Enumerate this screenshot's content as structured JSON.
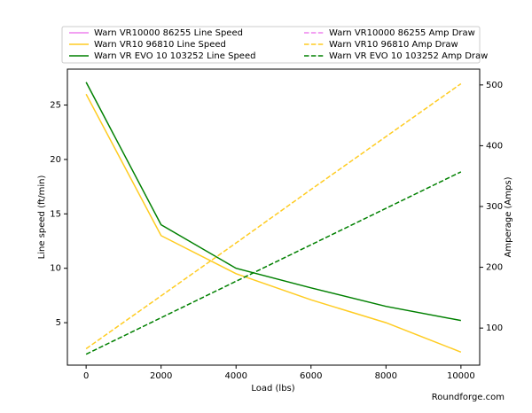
{
  "chart_data": {
    "type": "line",
    "x_label": "Load (lbs)",
    "y_label": "Line speed (ft/min)",
    "y2_label": "Amperage (Amps)",
    "watermark": "Roundforge.com",
    "x": [
      0,
      2000,
      4000,
      6000,
      8000,
      10000
    ],
    "xlim": [
      -500,
      10500
    ],
    "xticks": [
      0,
      2000,
      4000,
      6000,
      8000,
      10000
    ],
    "ylim": [
      1.1,
      28.3
    ],
    "yticks": [
      5,
      10,
      15,
      20,
      25
    ],
    "y2lim": [
      39,
      526
    ],
    "y2ticks": [
      100,
      200,
      300,
      400,
      500
    ],
    "series": [
      {
        "name": "Warn VR10000 86255 Line Speed",
        "color": "#ee82ee",
        "linestyle": "solid",
        "values": [
          null,
          null,
          null,
          null,
          null,
          null
        ]
      },
      {
        "name": "Warn VR10 96810 Line Speed",
        "color": "#ffcc22",
        "linestyle": "solid",
        "values": [
          26,
          13,
          9.5,
          7.1,
          5,
          2.3
        ]
      },
      {
        "name": "Warn VR EVO 10 103252 Line Speed",
        "color": "#008000",
        "linestyle": "solid",
        "values": [
          27.1,
          14,
          10,
          8.2,
          6.5,
          5.2
        ]
      },
      {
        "name": "Warn VR10000 86255 Amp Draw",
        "color": "#ee82ee",
        "linestyle": "dashed",
        "axis": "y2",
        "values": [
          null,
          null,
          null,
          null,
          null,
          null
        ]
      },
      {
        "name": "Warn VR10 96810 Amp Draw",
        "color": "#ffcc22",
        "linestyle": "dashed",
        "axis": "y2",
        "values": [
          66,
          153,
          240,
          328,
          415,
          502
        ]
      },
      {
        "name": "Warn VR EVO 10 103252 Amp Draw",
        "color": "#008000",
        "linestyle": "dashed",
        "axis": "y2",
        "values": [
          57,
          117,
          177,
          237,
          297,
          357
        ]
      }
    ]
  }
}
